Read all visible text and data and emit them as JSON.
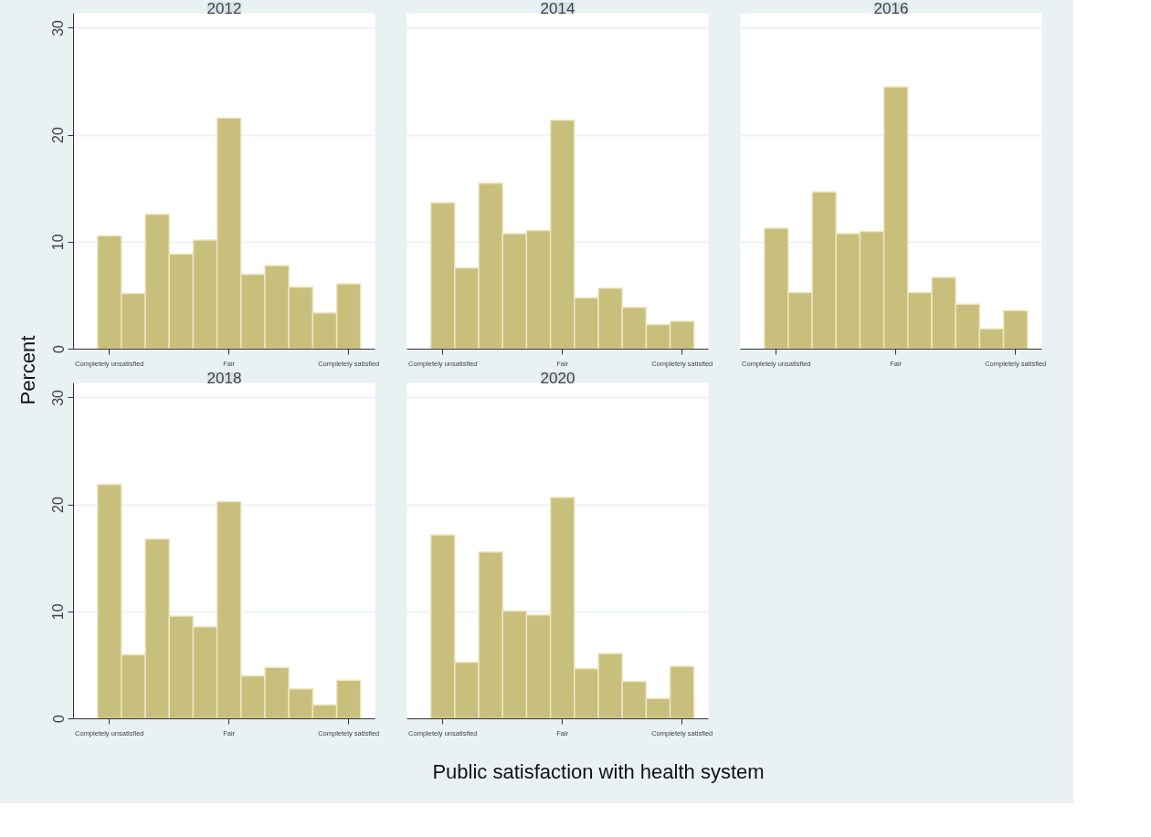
{
  "chart_data": [
    {
      "type": "bar",
      "title": "2012",
      "ylabel": "Percent",
      "xlabel": "Public satisfaction with health system",
      "categories": [
        "Completely unsatisfied",
        null,
        null,
        null,
        null,
        "Fair",
        null,
        null,
        null,
        null,
        "Completely satisfied"
      ],
      "values": [
        10.6,
        5.2,
        12.6,
        8.9,
        10.2,
        21.6,
        7.0,
        7.8,
        5.8,
        3.4,
        6.1
      ],
      "color": "#c9bf7c",
      "ylim": [
        0,
        31.4
      ],
      "yticks": [
        0,
        10,
        20,
        30
      ],
      "grid": "y"
    },
    {
      "type": "bar",
      "title": "2014",
      "categories": [
        "Completely unsatisfied",
        null,
        null,
        null,
        null,
        "Fair",
        null,
        null,
        null,
        null,
        "Completely satisfied"
      ],
      "values": [
        13.7,
        7.6,
        15.5,
        10.8,
        11.1,
        21.4,
        4.8,
        5.7,
        3.9,
        2.3,
        2.6
      ],
      "color": "#c9bf7c",
      "ylim": [
        0,
        31.4
      ],
      "yticks": [
        0,
        10,
        20,
        30
      ],
      "grid": "y",
      "tick_labels": "x"
    },
    {
      "type": "bar",
      "title": "2016",
      "categories": [
        "Completely unsatisfied",
        null,
        null,
        null,
        null,
        "Fair",
        null,
        null,
        null,
        null,
        "Completely satisfied"
      ],
      "values": [
        11.3,
        5.3,
        14.7,
        10.8,
        11.0,
        24.5,
        5.3,
        6.7,
        4.2,
        1.9,
        3.6
      ],
      "color": "#c9bf7c",
      "ylim": [
        0,
        31.4
      ],
      "yticks": [
        0,
        10,
        20,
        30
      ],
      "grid": "y",
      "tick_labels": "x"
    },
    {
      "type": "bar",
      "title": "2018",
      "categories": [
        "Completely unsatisfied",
        null,
        null,
        null,
        null,
        "Fair",
        null,
        null,
        null,
        null,
        "Completely satisfied"
      ],
      "values": [
        21.9,
        6.0,
        16.8,
        9.6,
        8.6,
        20.3,
        4.0,
        4.8,
        2.8,
        1.3,
        3.6
      ],
      "color": "#c9bf7c",
      "ylim": [
        0,
        31.4
      ],
      "yticks": [
        0,
        10,
        20,
        30
      ],
      "grid": "y"
    },
    {
      "type": "bar",
      "title": "2020",
      "categories": [
        "Completely unsatisfied",
        null,
        null,
        null,
        null,
        "Fair",
        null,
        null,
        null,
        null,
        "Completely satisfied"
      ],
      "values": [
        17.2,
        5.3,
        15.6,
        10.1,
        9.7,
        20.7,
        4.7,
        6.1,
        3.5,
        1.9,
        4.9
      ],
      "color": "#c9bf7c",
      "ylim": [
        0,
        31.4
      ],
      "yticks": [
        0,
        10,
        20,
        30
      ],
      "grid": "y",
      "tick_labels": "x"
    }
  ]
}
